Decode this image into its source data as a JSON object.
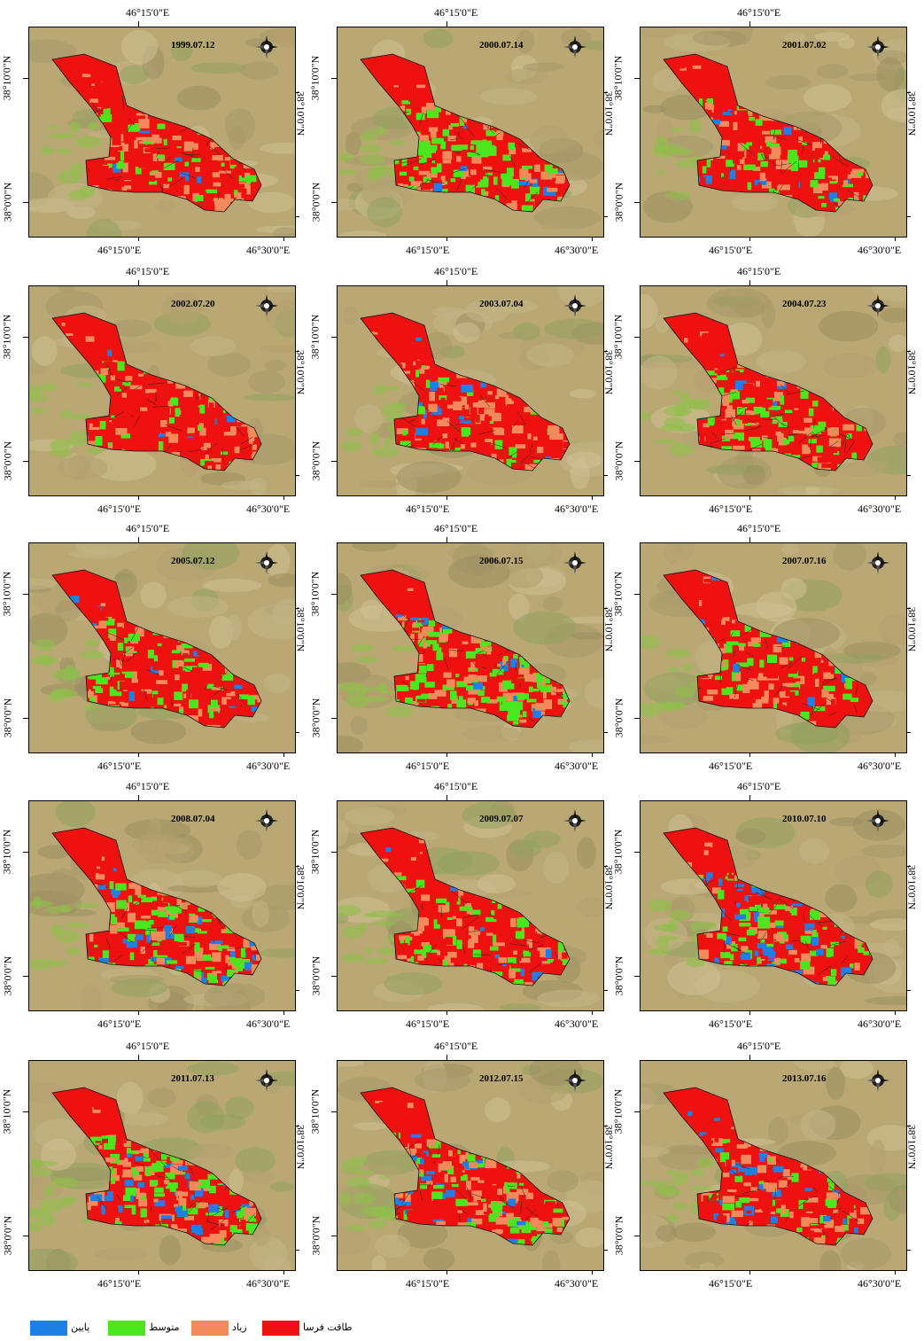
{
  "coords": {
    "lon_left": "46°15'0\"E",
    "lon_right": "46°30'0\"E",
    "lat_top": "38°10'0\"N",
    "lat_bottom": "38°0'0\"N",
    "lon_top_alt": "46°15'0\"E"
  },
  "panels": [
    {
      "date": "1999.07.12"
    },
    {
      "date": "2000.07.14"
    },
    {
      "date": "2001.07.02"
    },
    {
      "date": "2002.07.20"
    },
    {
      "date": "2003.07.04"
    },
    {
      "date": "2004.07.23"
    },
    {
      "date": "2005.07.12"
    },
    {
      "date": "2006.07.15"
    },
    {
      "date": "2007.07.16"
    },
    {
      "date": "2008.07.04"
    },
    {
      "date": "2009.07.07"
    },
    {
      "date": "2010.07.10"
    },
    {
      "date": "2011.07.13"
    },
    {
      "date": "2012.07.15"
    },
    {
      "date": "2013.07.16"
    }
  ],
  "legend": [
    {
      "label": "پایین",
      "color": "#1e7fe6"
    },
    {
      "label": "متوسط",
      "color": "#4be61e"
    },
    {
      "label": "زیاد",
      "color": "#f28a5c"
    },
    {
      "label": "طاقت فرسا",
      "color": "#ef1010"
    }
  ],
  "colors": {
    "background_terrain": "#b9a874",
    "red": "#ef1010",
    "salmon": "#f28a5c",
    "green": "#4be61e",
    "blue": "#1e7fe6"
  }
}
